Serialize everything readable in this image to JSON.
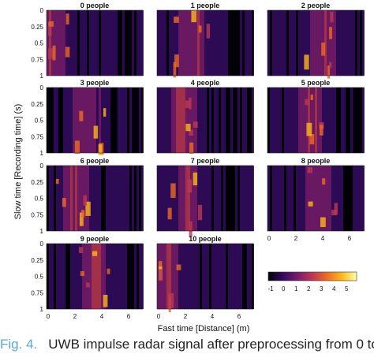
{
  "figure": {
    "ylabel": "Slow time [Recording time] (s)",
    "xlabel": "Fast time [Distance] (m)",
    "panel_titles": [
      "0 people",
      "1 people",
      "2 people",
      "3 people",
      "4 people",
      "5 people",
      "6 people",
      "7 people",
      "8 people",
      "9 people",
      "10 people"
    ],
    "y_ticks": [
      "0",
      "0.25",
      "0.5",
      "0.75",
      "1"
    ],
    "x_ticks": [
      "0",
      "2",
      "4",
      "6"
    ],
    "colorbar_ticks": [
      "-1",
      "0",
      "1",
      "2",
      "3",
      "4",
      "5"
    ],
    "colorbar_range": [
      -1.2,
      5.8
    ],
    "colormap": [
      "#000004",
      "#320a5e",
      "#781c6d",
      "#bc3754",
      "#ed6925",
      "#fbb61a",
      "#fcffa4"
    ]
  },
  "caption": {
    "label": "Fig. 4.",
    "text": "UWB impulse radar signal after preprocessing from 0 to"
  }
}
